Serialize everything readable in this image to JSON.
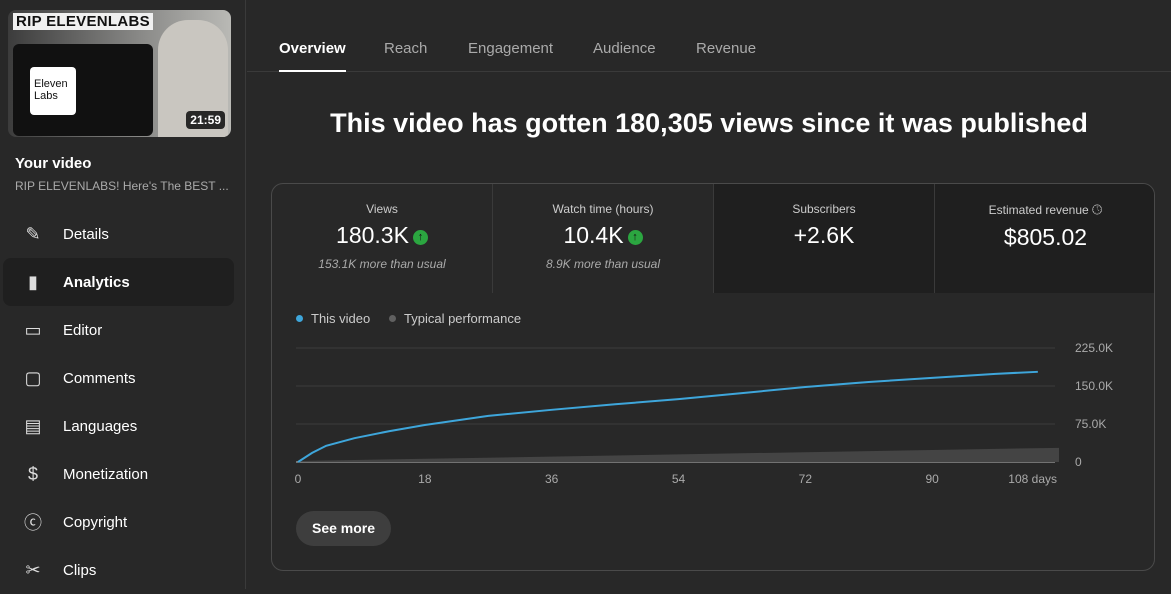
{
  "video": {
    "thumbnail_title": "RIP ELEVENLABS",
    "logo_text": "Eleven Labs",
    "duration": "21:59",
    "heading": "Your video",
    "title": "RIP ELEVENLABS! Here's The BEST ..."
  },
  "nav": [
    {
      "label": "Details",
      "icon": "pencil-icon"
    },
    {
      "label": "Analytics",
      "icon": "analytics-icon",
      "active": true
    },
    {
      "label": "Editor",
      "icon": "clapper-icon"
    },
    {
      "label": "Comments",
      "icon": "comment-icon"
    },
    {
      "label": "Languages",
      "icon": "subtitles-icon"
    },
    {
      "label": "Monetization",
      "icon": "dollar-icon"
    },
    {
      "label": "Copyright",
      "icon": "copyright-icon"
    },
    {
      "label": "Clips",
      "icon": "scissors-icon"
    }
  ],
  "tabs": [
    {
      "label": "Overview",
      "active": true
    },
    {
      "label": "Reach"
    },
    {
      "label": "Engagement"
    },
    {
      "label": "Audience"
    },
    {
      "label": "Revenue"
    }
  ],
  "headline": "This video has gotten 180,305 views since it was published",
  "metrics": [
    {
      "title": "Views",
      "value": "180.3K",
      "trend": "up",
      "sub": "153.1K more than usual"
    },
    {
      "title": "Watch time (hours)",
      "value": "10.4K",
      "trend": "up",
      "sub": "8.9K more than usual"
    },
    {
      "title": "Subscribers",
      "value": "+2.6K"
    },
    {
      "title": "Estimated revenue",
      "value": "$805.02",
      "icon": "clock-icon"
    }
  ],
  "see_more": "See more",
  "colors": {
    "this_video": "#3ea6db",
    "typical": "#606060",
    "up": "#2ba640"
  },
  "chart_data": {
    "type": "line",
    "x_unit": "days",
    "xlim": [
      0,
      108
    ],
    "ylim": [
      0,
      225000
    ],
    "x_ticks": [
      "0",
      "18",
      "36",
      "54",
      "72",
      "90",
      "108 days"
    ],
    "y_ticks": [
      "225.0K",
      "150.0K",
      "75.0K",
      "0"
    ],
    "series": [
      {
        "name": "This video",
        "x": [
          0,
          2,
          4,
          8,
          13,
          18,
          27,
          36,
          45,
          54,
          63,
          72,
          81,
          90,
          99,
          105
        ],
        "y": [
          0,
          18000,
          32000,
          47000,
          61000,
          73000,
          91000,
          103000,
          114000,
          124000,
          136000,
          148000,
          158000,
          166000,
          174000,
          178000
        ]
      },
      {
        "name": "Typical performance",
        "type": "band",
        "x": [
          0,
          108
        ],
        "low": [
          0,
          0
        ],
        "high": [
          2000,
          28000
        ]
      }
    ],
    "grid": true,
    "legend": "top-left"
  }
}
